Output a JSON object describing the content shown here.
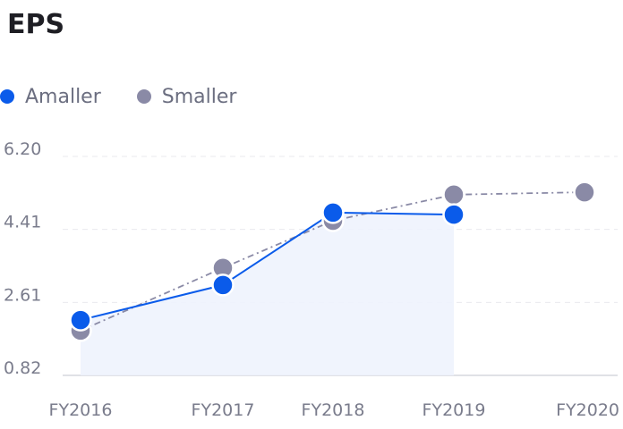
{
  "chart_data": {
    "type": "line",
    "title": "EPS",
    "categories": [
      "FY2016",
      "FY2017",
      "FY2018",
      "FY2019",
      "FY2020"
    ],
    "yticks": [
      "6.20",
      "4.41",
      "2.61",
      "0.82"
    ],
    "ylim": [
      0.82,
      6.2
    ],
    "grid": true,
    "legend_position": "top-left",
    "series": [
      {
        "name": "Amaller",
        "color": "#0a5bea",
        "style": "solid",
        "area": true,
        "values": [
          2.18,
          3.04,
          4.82,
          4.77,
          null
        ]
      },
      {
        "name": "Smaller",
        "color": "#8a8aa6",
        "style": "dashdot",
        "area": false,
        "values": [
          1.92,
          3.46,
          4.62,
          5.26,
          5.32
        ]
      }
    ]
  }
}
